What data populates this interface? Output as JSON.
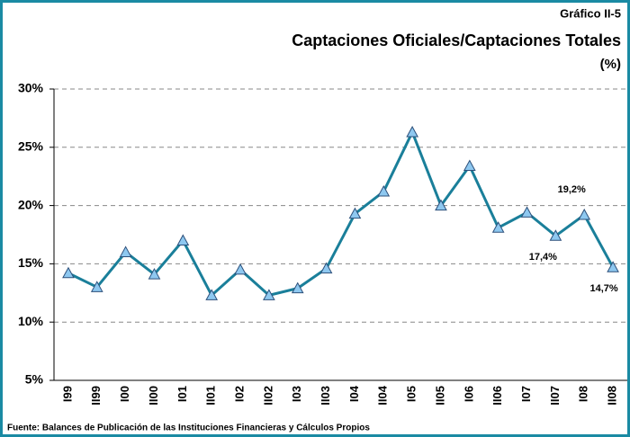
{
  "chart_data": {
    "type": "line",
    "label": "Gráfico II-5",
    "title": "Captaciones Oficiales/Captaciones Totales",
    "subtitle": "(%)",
    "source": "Fuente: Balances de Publicación de las Instituciones Financieras  y Cálculos Propios",
    "categories": [
      "I99",
      "II99",
      "I00",
      "II00",
      "I01",
      "II01",
      "I02",
      "II02",
      "I03",
      "II03",
      "I04",
      "II04",
      "I05",
      "II05",
      "I06",
      "II06",
      "I07",
      "II07",
      "I08",
      "II08"
    ],
    "series": [
      {
        "name": "Captaciones Oficiales/Captaciones Totales",
        "color": "#1a7f9a",
        "marker_color": "#8ec8f0",
        "values": [
          14.2,
          13.0,
          16.0,
          14.1,
          17.0,
          12.3,
          14.5,
          12.3,
          12.9,
          14.6,
          19.3,
          21.2,
          26.3,
          20.0,
          23.4,
          18.1,
          19.4,
          17.4,
          19.2,
          14.7
        ],
        "value_labels": [
          null,
          null,
          null,
          null,
          null,
          null,
          null,
          null,
          null,
          null,
          null,
          null,
          null,
          null,
          null,
          null,
          null,
          "17,4%",
          "19,2%",
          "14,7%"
        ]
      }
    ],
    "ylim": [
      5,
      30
    ],
    "yticks": [
      {
        "value": 5,
        "label": "5%"
      },
      {
        "value": 10,
        "label": "10%"
      },
      {
        "value": 15,
        "label": "15%"
      },
      {
        "value": 20,
        "label": "20%"
      },
      {
        "value": 25,
        "label": "25%"
      },
      {
        "value": 30,
        "label": "30%"
      }
    ],
    "grid": true
  }
}
